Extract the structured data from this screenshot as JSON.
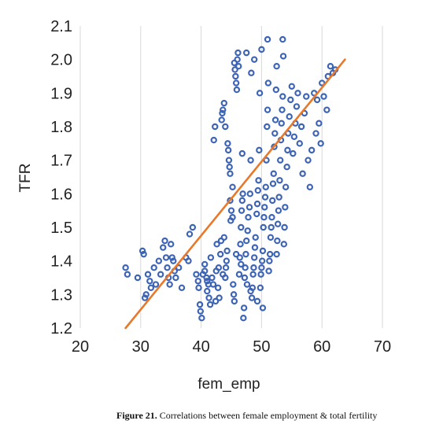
{
  "caption": {
    "label": "Figure 21.",
    "text": "Correlations between female employment & total fertility"
  },
  "chart_data": {
    "type": "scatter",
    "title": "",
    "xlabel": "fem_emp",
    "ylabel": "TFR",
    "xlim": [
      20,
      70
    ],
    "ylim": [
      1.2,
      2.1
    ],
    "xticks": [
      "20",
      "30",
      "40",
      "50",
      "60",
      "70"
    ],
    "yticks": [
      "1.2",
      "1.3",
      "1.4",
      "1.5",
      "1.6",
      "1.7",
      "1.8",
      "1.9",
      "2.0",
      "2.1"
    ],
    "grid": "vertical",
    "legend": "none",
    "colors": {
      "points": "#3d64b4",
      "trendline": "#e8792b"
    },
    "trendline": {
      "x": [
        27.5,
        63.8
      ],
      "y": [
        1.2,
        2.0
      ]
    },
    "points": [
      [
        27.5,
        1.38
      ],
      [
        27.8,
        1.36
      ],
      [
        29.5,
        1.35
      ],
      [
        30.3,
        1.43
      ],
      [
        30.5,
        1.42
      ],
      [
        30.7,
        1.29
      ],
      [
        30.9,
        1.3
      ],
      [
        31.2,
        1.36
      ],
      [
        31.5,
        1.34
      ],
      [
        31.7,
        1.32
      ],
      [
        32.2,
        1.38
      ],
      [
        32.5,
        1.33
      ],
      [
        33,
        1.4
      ],
      [
        33.3,
        1.36
      ],
      [
        33.7,
        1.44
      ],
      [
        34,
        1.46
      ],
      [
        34.2,
        1.41
      ],
      [
        34.4,
        1.38
      ],
      [
        34.6,
        1.35
      ],
      [
        34.8,
        1.33
      ],
      [
        35,
        1.45
      ],
      [
        35.2,
        1.41
      ],
      [
        35.4,
        1.4
      ],
      [
        35.6,
        1.37
      ],
      [
        35.8,
        1.35
      ],
      [
        36.3,
        1.38
      ],
      [
        36.8,
        1.32
      ],
      [
        37.5,
        1.41
      ],
      [
        37.9,
        1.4
      ],
      [
        38.1,
        1.48
      ],
      [
        38.6,
        1.5
      ],
      [
        39.2,
        1.36
      ],
      [
        39.5,
        1.34
      ],
      [
        39.6,
        1.32
      ],
      [
        39.8,
        1.27
      ],
      [
        39.9,
        1.25
      ],
      [
        40.1,
        1.23
      ],
      [
        40.3,
        1.36
      ],
      [
        40.6,
        1.37
      ],
      [
        40.9,
        1.35
      ],
      [
        41,
        1.34
      ],
      [
        41.2,
        1.33
      ],
      [
        41.3,
        1.29
      ],
      [
        41.5,
        1.27
      ],
      [
        41.8,
        1.35
      ],
      [
        42,
        1.33
      ],
      [
        42.1,
        1.76
      ],
      [
        42.3,
        1.8
      ],
      [
        42.4,
        1.28
      ],
      [
        42.5,
        1.37
      ],
      [
        42.8,
        1.32
      ],
      [
        43,
        1.29
      ],
      [
        43.2,
        1.42
      ],
      [
        43.3,
        1.46
      ],
      [
        43.4,
        1.82
      ],
      [
        43.5,
        1.84
      ],
      [
        43.6,
        1.85
      ],
      [
        43.8,
        1.87
      ],
      [
        44,
        1.8
      ],
      [
        44,
        1.35
      ],
      [
        44.1,
        1.38
      ],
      [
        44.2,
        1.4
      ],
      [
        44.3,
        1.43
      ],
      [
        44.4,
        1.75
      ],
      [
        44.5,
        1.73
      ],
      [
        44.6,
        1.7
      ],
      [
        44.7,
        1.68
      ],
      [
        44.8,
        1.66
      ],
      [
        44.9,
        1.52
      ],
      [
        45,
        1.55
      ],
      [
        45.2,
        1.53
      ],
      [
        45.3,
        1.33
      ],
      [
        45.4,
        1.3
      ],
      [
        45.5,
        1.28
      ],
      [
        45.5,
        1.99
      ],
      [
        45.6,
        1.97
      ],
      [
        45.7,
        1.95
      ],
      [
        45.8,
        1.93
      ],
      [
        45.9,
        1.91
      ],
      [
        46,
        2.0
      ],
      [
        46.1,
        2.02
      ],
      [
        46.2,
        1.98
      ],
      [
        46.3,
        1.36
      ],
      [
        46.4,
        1.41
      ],
      [
        46.5,
        1.45
      ],
      [
        46.6,
        1.5
      ],
      [
        46.7,
        1.55
      ],
      [
        46.8,
        1.58
      ],
      [
        46.9,
        1.6
      ],
      [
        47,
        1.23
      ],
      [
        47.1,
        1.26
      ],
      [
        47.2,
        1.35
      ],
      [
        47.3,
        1.38
      ],
      [
        47.4,
        1.42
      ],
      [
        47.5,
        1.46
      ],
      [
        47.7,
        1.49
      ],
      [
        47.8,
        1.53
      ],
      [
        48,
        1.56
      ],
      [
        48.1,
        1.6
      ],
      [
        48.2,
        1.7
      ],
      [
        48.3,
        1.96
      ],
      [
        48.4,
        1.29
      ],
      [
        48.5,
        1.32
      ],
      [
        48.6,
        1.36
      ],
      [
        48.7,
        1.38
      ],
      [
        48.8,
        1.41
      ],
      [
        48.9,
        1.44
      ],
      [
        49,
        1.47
      ],
      [
        49.2,
        1.54
      ],
      [
        49.3,
        1.57
      ],
      [
        49.4,
        1.61
      ],
      [
        49.5,
        1.64
      ],
      [
        49.6,
        1.73
      ],
      [
        49.7,
        1.9
      ],
      [
        49.8,
        1.32
      ],
      [
        49.9,
        1.36
      ],
      [
        50,
        1.38
      ],
      [
        50,
        2.03
      ],
      [
        50.1,
        1.4
      ],
      [
        50.2,
        1.43
      ],
      [
        50.3,
        1.5
      ],
      [
        50.4,
        1.53
      ],
      [
        50.5,
        1.56
      ],
      [
        50.6,
        1.59
      ],
      [
        50.7,
        1.62
      ],
      [
        50.8,
        1.7
      ],
      [
        50.9,
        1.8
      ],
      [
        51,
        1.85
      ],
      [
        51.1,
        1.93
      ],
      [
        51.2,
        1.37
      ],
      [
        51.3,
        1.4
      ],
      [
        51.4,
        1.42
      ],
      [
        51.5,
        1.47
      ],
      [
        51.6,
        1.5
      ],
      [
        51.7,
        1.53
      ],
      [
        51.8,
        1.58
      ],
      [
        51.9,
        1.63
      ],
      [
        52,
        1.66
      ],
      [
        52.1,
        1.74
      ],
      [
        52.2,
        1.78
      ],
      [
        52.3,
        1.82
      ],
      [
        52.4,
        1.91
      ],
      [
        52.5,
        1.42
      ],
      [
        52.6,
        1.46
      ],
      [
        52.7,
        1.51
      ],
      [
        52.8,
        1.55
      ],
      [
        52.9,
        1.59
      ],
      [
        53,
        1.64
      ],
      [
        53.1,
        1.7
      ],
      [
        53.2,
        1.76
      ],
      [
        53.3,
        1.81
      ],
      [
        53.4,
        1.85
      ],
      [
        53.5,
        1.89
      ],
      [
        53.5,
        2.06
      ],
      [
        53.6,
        2.01
      ],
      [
        53.7,
        1.45
      ],
      [
        53.8,
        1.5
      ],
      [
        53.9,
        1.56
      ],
      [
        54,
        1.62
      ],
      [
        54.2,
        1.68
      ],
      [
        54.3,
        1.73
      ],
      [
        54.4,
        1.78
      ],
      [
        54.6,
        1.83
      ],
      [
        54.8,
        1.88
      ],
      [
        55,
        1.92
      ],
      [
        55.2,
        1.72
      ],
      [
        55.4,
        1.77
      ],
      [
        55.6,
        1.81
      ],
      [
        55.8,
        1.86
      ],
      [
        56,
        1.9
      ],
      [
        56.3,
        1.75
      ],
      [
        56.6,
        1.8
      ],
      [
        56.8,
        1.66
      ],
      [
        57.1,
        1.84
      ],
      [
        57.4,
        1.89
      ],
      [
        57.7,
        1.7
      ],
      [
        58,
        1.62
      ],
      [
        58.3,
        1.73
      ],
      [
        58.7,
        1.9
      ],
      [
        59,
        1.78
      ],
      [
        59.2,
        1.88
      ],
      [
        59.5,
        1.81
      ],
      [
        59.8,
        1.75
      ],
      [
        60,
        1.93
      ],
      [
        60.3,
        1.89
      ],
      [
        60.8,
        1.85
      ],
      [
        61,
        1.95
      ],
      [
        61.4,
        1.98
      ],
      [
        61.8,
        1.96
      ],
      [
        62.2,
        1.97
      ],
      [
        51.0,
        2.06
      ],
      [
        52.5,
        1.98
      ],
      [
        47.5,
        2.02
      ],
      [
        48.8,
        2.0
      ],
      [
        46.8,
        1.72
      ],
      [
        45.2,
        1.62
      ],
      [
        44.8,
        1.58
      ],
      [
        50.2,
        1.26
      ],
      [
        49.3,
        1.28
      ],
      [
        48.2,
        1.31
      ],
      [
        47.6,
        1.33
      ],
      [
        46.6,
        1.39
      ],
      [
        45.8,
        1.42
      ],
      [
        43.8,
        1.47
      ],
      [
        42.6,
        1.45
      ],
      [
        41.6,
        1.41
      ],
      [
        40.6,
        1.39
      ],
      [
        41.0,
        1.31
      ],
      [
        42.9,
        1.38
      ],
      [
        43.6,
        1.36
      ]
    ]
  }
}
